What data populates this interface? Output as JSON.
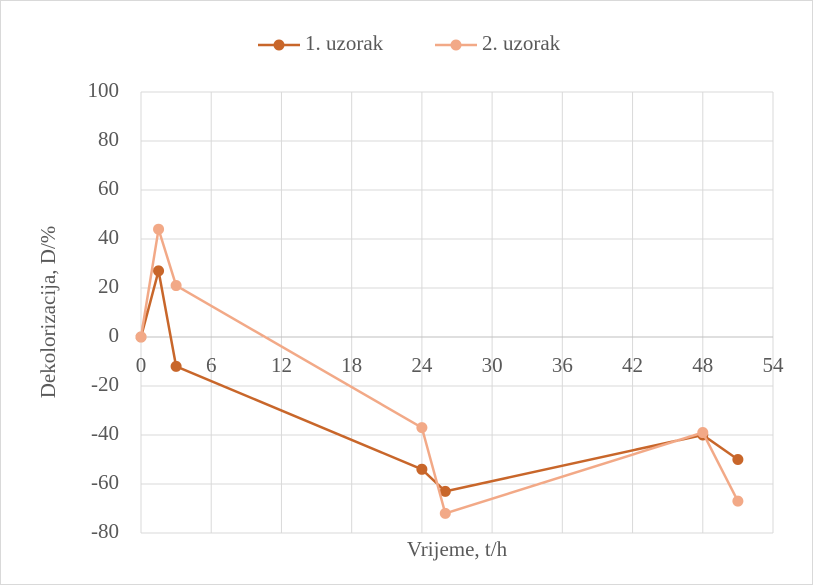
{
  "chart_data": {
    "type": "line",
    "x_label": "Vrijeme, t/h",
    "y_label": "Dekolorizacija, D/%",
    "xlim": [
      0,
      54
    ],
    "xticks": [
      0,
      6,
      12,
      18,
      24,
      30,
      36,
      42,
      48,
      54
    ],
    "ylim": [
      -80,
      100
    ],
    "yticks": [
      -80,
      -60,
      -40,
      -20,
      0,
      20,
      40,
      60,
      80,
      100
    ],
    "grid": true,
    "legend": "top",
    "series": [
      {
        "name": "1. uzorak",
        "color": "#c8662a",
        "x": [
          0,
          1.5,
          3,
          24,
          26,
          48,
          51
        ],
        "values": [
          0,
          27,
          -12,
          -54,
          -63,
          -40,
          -50
        ]
      },
      {
        "name": "2. uzorak",
        "color": "#f2a987",
        "x": [
          0,
          1.5,
          3,
          24,
          26,
          48,
          51
        ],
        "values": [
          0,
          44,
          21,
          -37,
          -72,
          -39,
          -67
        ]
      }
    ]
  }
}
